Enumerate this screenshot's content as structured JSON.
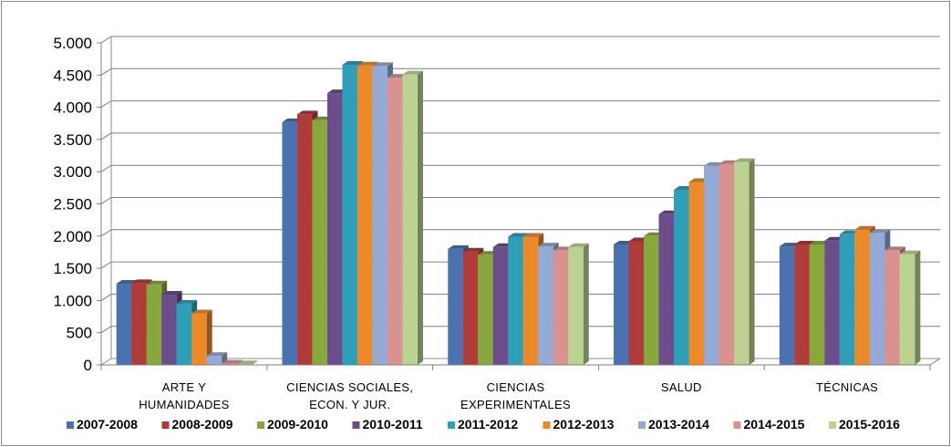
{
  "colors": [
    "#4a72b0",
    "#b03c3a",
    "#86a83c",
    "#6b4d8c",
    "#2e9fb8",
    "#ec8a2a",
    "#93aad6",
    "#d99290",
    "#bcd292"
  ],
  "chart_data": {
    "type": "bar",
    "title": "",
    "xlabel": "",
    "ylabel": "",
    "ylim": [
      0,
      5000
    ],
    "yticks": [
      0,
      500,
      1000,
      1500,
      2000,
      2500,
      3000,
      3500,
      4000,
      4500,
      5000
    ],
    "ytick_labels": [
      "0",
      "500",
      "1.000",
      "1.500",
      "2.000",
      "2.500",
      "3.000",
      "3.500",
      "4.000",
      "4.500",
      "5.000"
    ],
    "grid": true,
    "legend": "bottom",
    "categories": [
      [
        "ARTE Y",
        "HUMANIDADES"
      ],
      [
        "CIENCIAS SOCIALES,",
        "ECON. Y JUR."
      ],
      [
        "CIENCIAS",
        "EXPERIMENTALES"
      ],
      [
        "SALUD"
      ],
      [
        "TÉCNICAS"
      ]
    ],
    "series": [
      {
        "name": "2007-2008",
        "values": [
          1260,
          3770,
          1800,
          1870,
          1840
        ]
      },
      {
        "name": "2008-2009",
        "values": [
          1270,
          3890,
          1760,
          1920,
          1870
        ]
      },
      {
        "name": "2009-2010",
        "values": [
          1250,
          3800,
          1710,
          2000,
          1870
        ]
      },
      {
        "name": "2010-2011",
        "values": [
          1090,
          4220,
          1830,
          2340,
          1930
        ]
      },
      {
        "name": "2011-2012",
        "values": [
          950,
          4660,
          1990,
          2720,
          2030
        ]
      },
      {
        "name": "2012-2013",
        "values": [
          800,
          4650,
          1990,
          2840,
          2100
        ]
      },
      {
        "name": "2013-2014",
        "values": [
          140,
          4640,
          1840,
          3090,
          2050
        ]
      },
      {
        "name": "2014-2015",
        "values": [
          20,
          4460,
          1780,
          3120,
          1780
        ]
      },
      {
        "name": "2015-2016",
        "values": [
          10,
          4510,
          1830,
          3150,
          1720
        ]
      }
    ]
  }
}
